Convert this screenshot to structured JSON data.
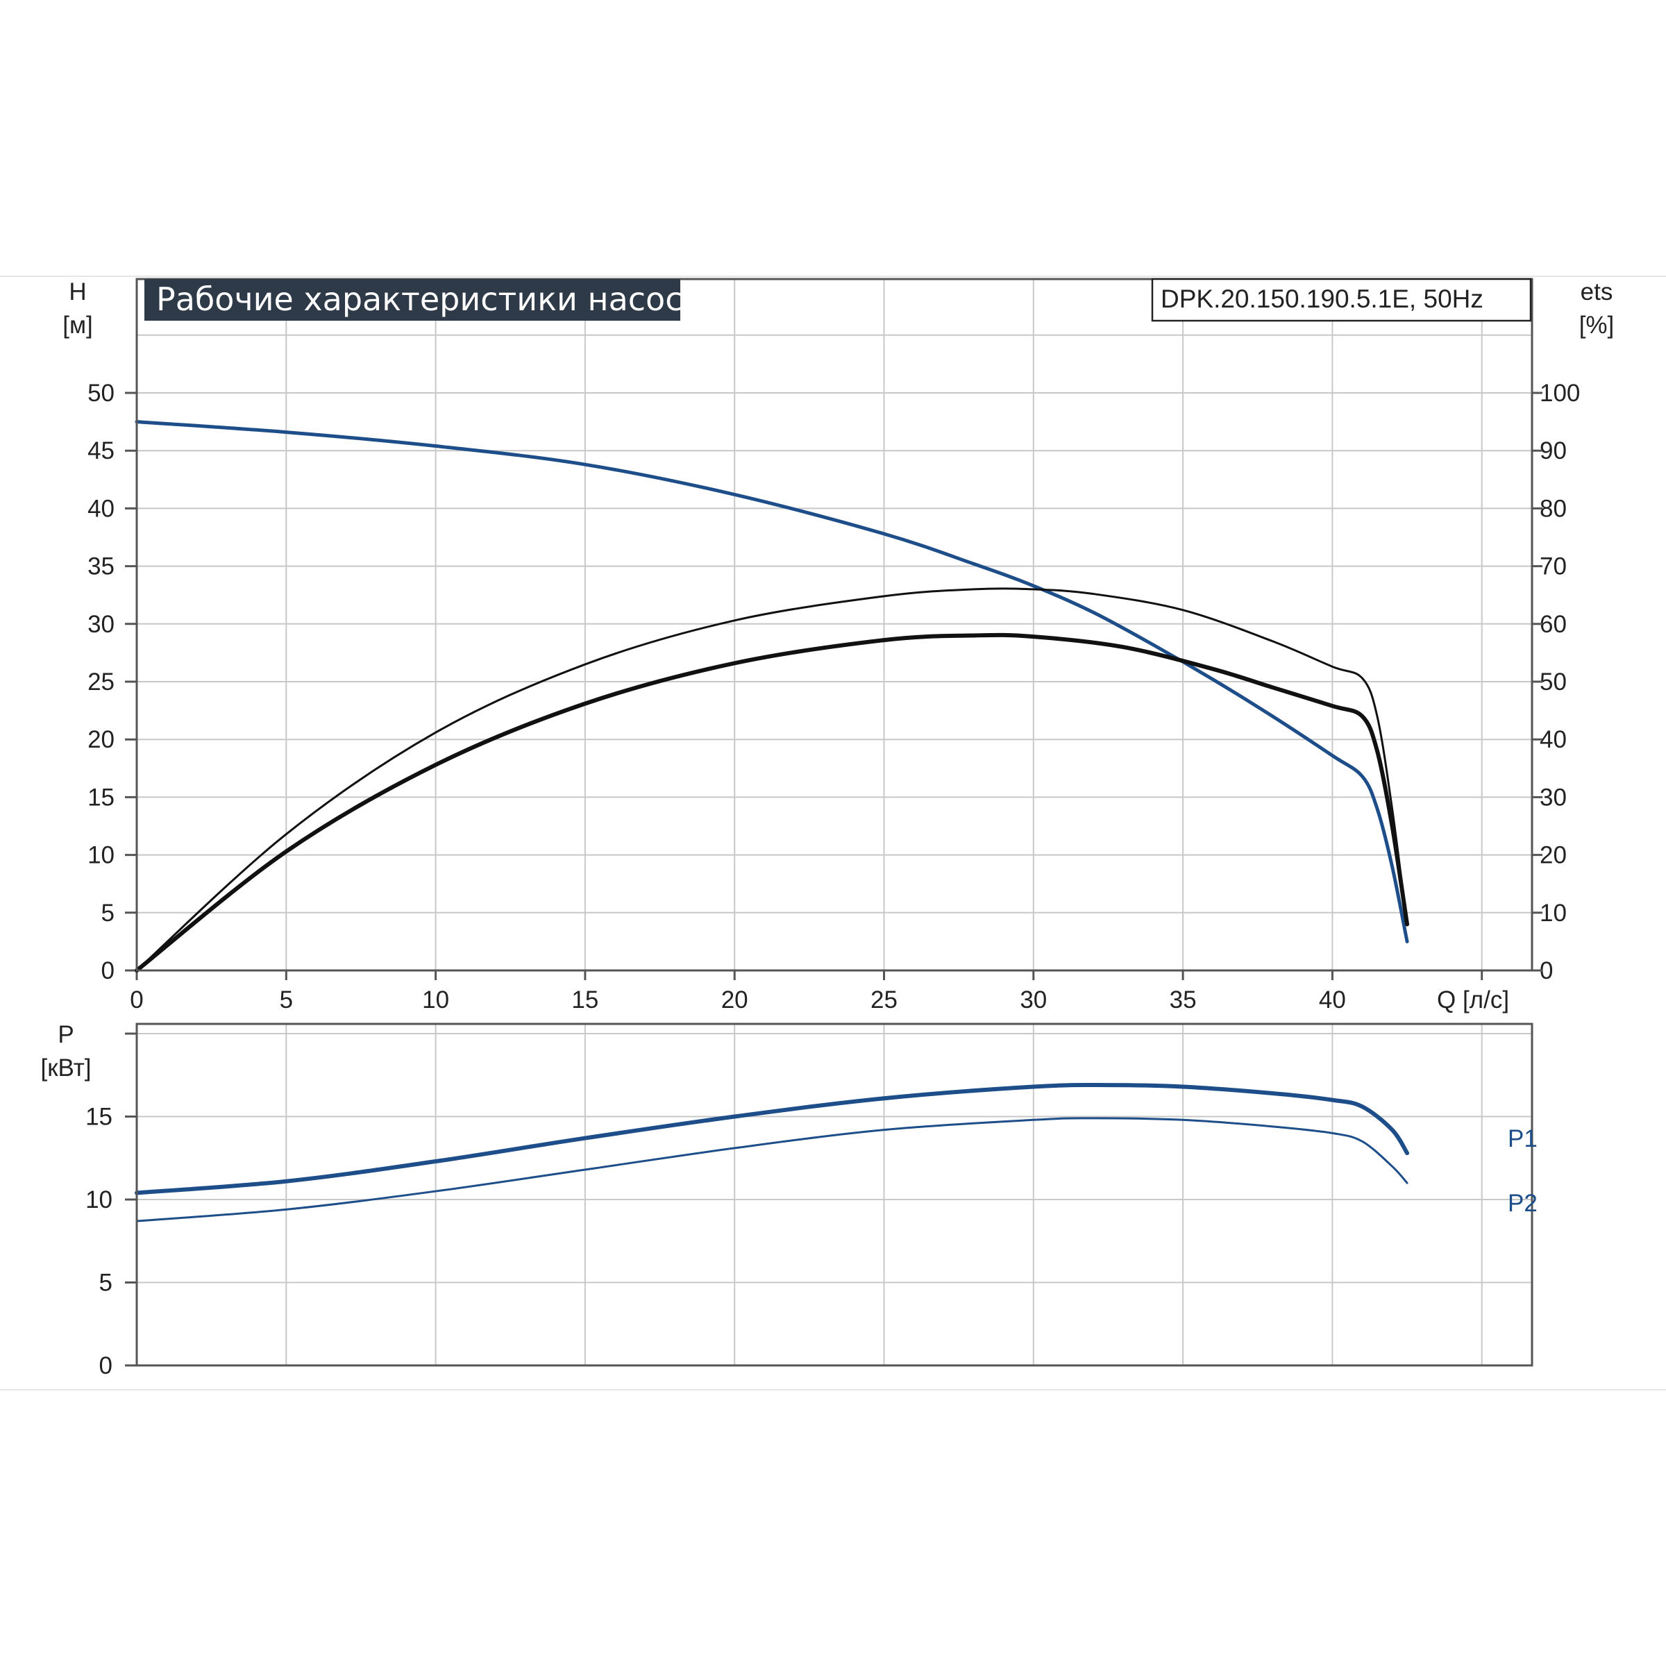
{
  "title": "Рабочие характеристики насоса",
  "model": "DPK.20.150.190.5.1E, 50Hz",
  "colors": {
    "blue": "#1d4e89",
    "black": "#111111",
    "title_bg": "#2f3a49"
  },
  "chart_data": [
    {
      "type": "line",
      "name": "head-efficiency",
      "xlabel": "Q [л/с]",
      "ylabel_line1": "H",
      "ylabel_line2": "[м]",
      "y2label_line1": "ets",
      "y2label_line2": "[%]",
      "xlim": [
        0,
        45
      ],
      "ylim": [
        0,
        50
      ],
      "y2lim": [
        0,
        100
      ],
      "xticks": [
        0,
        5,
        10,
        15,
        20,
        25,
        30,
        35,
        40
      ],
      "yticks": [
        0,
        5,
        10,
        15,
        20,
        25,
        30,
        35,
        40,
        45,
        50
      ],
      "y2ticks": [
        0,
        10,
        20,
        30,
        40,
        50,
        60,
        70,
        80,
        90,
        100
      ],
      "grid": true,
      "series": [
        {
          "key": "head",
          "axis": "left",
          "color": "#1d4e89",
          "width": 5,
          "x": [
            0,
            5,
            10,
            15,
            20,
            25,
            28,
            30,
            32,
            34,
            36,
            38,
            40,
            41,
            41.5,
            42,
            42.5
          ],
          "y": [
            47.5,
            46.6,
            45.4,
            43.8,
            41.2,
            37.8,
            35.2,
            33.3,
            31.0,
            28.2,
            25.2,
            22.0,
            18.6,
            16.8,
            14.0,
            9.0,
            2.5
          ]
        },
        {
          "key": "efficiency-thin",
          "axis": "right",
          "color": "#111111",
          "width": 3,
          "x": [
            0,
            5,
            10,
            15,
            20,
            25,
            28,
            30,
            32,
            35,
            38,
            40,
            41,
            41.5,
            42,
            42.5
          ],
          "y": [
            0,
            23.6,
            41.2,
            53.0,
            60.6,
            64.8,
            66.0,
            66.0,
            65.2,
            62.4,
            57.0,
            52.6,
            50.6,
            44.0,
            28.0,
            8.0
          ]
        },
        {
          "key": "efficiency-thick",
          "axis": "right",
          "color": "#111111",
          "width": 6,
          "x": [
            0,
            5,
            10,
            15,
            20,
            25,
            28,
            30,
            33,
            36,
            38,
            40,
            41,
            41.5,
            42,
            42.5
          ],
          "y": [
            0,
            20.6,
            35.6,
            46.2,
            53.2,
            57.2,
            58.0,
            57.8,
            56.0,
            52.2,
            49.0,
            45.8,
            44.0,
            38.0,
            25.0,
            8.0
          ]
        }
      ]
    },
    {
      "type": "line",
      "name": "power",
      "ylabel_line1": "P",
      "ylabel_line2": "[кВт]",
      "xlim": [
        0,
        45
      ],
      "ylim": [
        0,
        20
      ],
      "yticks": [
        0,
        5,
        10,
        15
      ],
      "grid": true,
      "series": [
        {
          "name": "P1",
          "color": "#1d4e89",
          "width": 6,
          "x": [
            0,
            5,
            10,
            15,
            20,
            25,
            30,
            32.5,
            35,
            38,
            40,
            41,
            42,
            42.5
          ],
          "y": [
            10.4,
            11.1,
            12.3,
            13.7,
            15.0,
            16.1,
            16.8,
            16.9,
            16.8,
            16.4,
            16.0,
            15.6,
            14.2,
            12.8
          ]
        },
        {
          "name": "P2",
          "color": "#1d4e89",
          "width": 3,
          "x": [
            0,
            5,
            10,
            15,
            20,
            25,
            30,
            32,
            35,
            38,
            40,
            41,
            42,
            42.5
          ],
          "y": [
            8.7,
            9.4,
            10.5,
            11.8,
            13.1,
            14.2,
            14.8,
            14.9,
            14.8,
            14.4,
            14.0,
            13.5,
            12.0,
            11.0
          ]
        }
      ]
    }
  ]
}
